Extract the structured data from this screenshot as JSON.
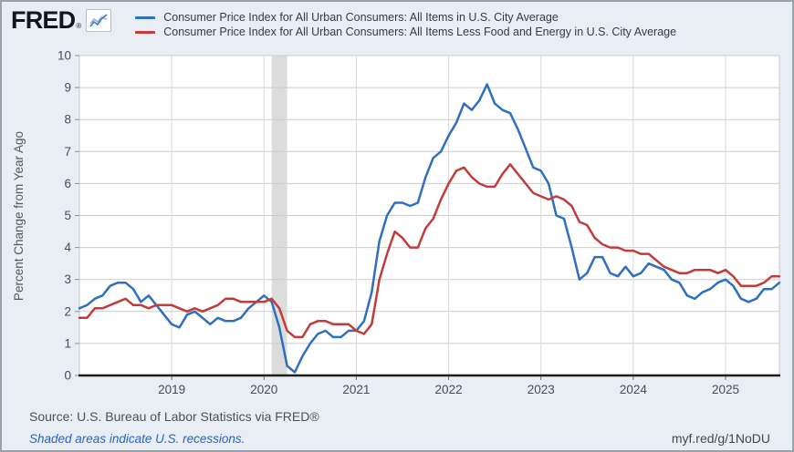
{
  "header": {
    "logo_text": "FRED",
    "logo_registered": "®"
  },
  "footer": {
    "source": "Source: U.S. Bureau of Labor Statistics via FRED®",
    "recession_note": "Shaded areas indicate U.S. recessions.",
    "short_url": "myf.red/g/1NoDU"
  },
  "colors": {
    "series1_blue": "#2f6fbe",
    "series2_red": "#c13b3b",
    "recession_gray": "#dcdcdc",
    "background": "#e9eef5",
    "plot_background": "#ffffff",
    "link_blue": "#2264c6",
    "axis_black": "#1d1d1d"
  },
  "chart_data": {
    "type": "line",
    "title": "",
    "xlabel": "",
    "ylabel": "Percent Change from Year Ago",
    "ylim": [
      0,
      10
    ],
    "y_ticks": [
      0,
      1,
      2,
      3,
      4,
      5,
      6,
      7,
      8,
      9,
      10
    ],
    "x_ticks": [
      "2019",
      "2020",
      "2021",
      "2022",
      "2023",
      "2024",
      "2025"
    ],
    "x_start": "2018-01",
    "x_end": "2025-08",
    "grid": true,
    "legend_position": "top",
    "recession_band": {
      "start": "2020-02",
      "end": "2020-04",
      "color": "#dcdcdc"
    },
    "series": [
      {
        "name": "Consumer Price Index for All Urban Consumers: All Items in U.S. City Average",
        "color": "#2f6fbe",
        "values": [
          2.1,
          2.2,
          2.4,
          2.5,
          2.8,
          2.9,
          2.9,
          2.7,
          2.3,
          2.5,
          2.2,
          1.9,
          1.6,
          1.5,
          1.9,
          2.0,
          1.8,
          1.6,
          1.8,
          1.7,
          1.7,
          1.8,
          2.1,
          2.3,
          2.5,
          2.3,
          1.5,
          0.3,
          0.1,
          0.6,
          1.0,
          1.3,
          1.4,
          1.2,
          1.2,
          1.4,
          1.4,
          1.7,
          2.6,
          4.2,
          5.0,
          5.4,
          5.4,
          5.3,
          5.4,
          6.2,
          6.8,
          7.0,
          7.5,
          7.9,
          8.5,
          8.3,
          8.6,
          9.1,
          8.5,
          8.3,
          8.2,
          7.7,
          7.1,
          6.5,
          6.4,
          6.0,
          5.0,
          4.9,
          4.0,
          3.0,
          3.2,
          3.7,
          3.7,
          3.2,
          3.1,
          3.4,
          3.1,
          3.2,
          3.5,
          3.4,
          3.3,
          3.0,
          2.9,
          2.5,
          2.4,
          2.6,
          2.7,
          2.9,
          3.0,
          2.8,
          2.4,
          2.3,
          2.4,
          2.7,
          2.7,
          2.9
        ]
      },
      {
        "name": "Consumer Price Index for All Urban Consumers: All Items Less Food and Energy in U.S. City Average",
        "color": "#c13b3b",
        "values": [
          1.8,
          1.8,
          2.1,
          2.1,
          2.2,
          2.3,
          2.4,
          2.2,
          2.2,
          2.1,
          2.2,
          2.2,
          2.2,
          2.1,
          2.0,
          2.1,
          2.0,
          2.1,
          2.2,
          2.4,
          2.4,
          2.3,
          2.3,
          2.3,
          2.3,
          2.4,
          2.1,
          1.4,
          1.2,
          1.2,
          1.6,
          1.7,
          1.7,
          1.6,
          1.6,
          1.6,
          1.4,
          1.3,
          1.6,
          3.0,
          3.8,
          4.5,
          4.3,
          4.0,
          4.0,
          4.6,
          4.9,
          5.5,
          6.0,
          6.4,
          6.5,
          6.2,
          6.0,
          5.9,
          5.9,
          6.3,
          6.6,
          6.3,
          6.0,
          5.7,
          5.6,
          5.5,
          5.6,
          5.5,
          5.3,
          4.8,
          4.7,
          4.3,
          4.1,
          4.0,
          4.0,
          3.9,
          3.9,
          3.8,
          3.8,
          3.6,
          3.4,
          3.3,
          3.2,
          3.2,
          3.3,
          3.3,
          3.3,
          3.2,
          3.3,
          3.1,
          2.8,
          2.8,
          2.8,
          2.9,
          3.1,
          3.1
        ]
      }
    ]
  }
}
